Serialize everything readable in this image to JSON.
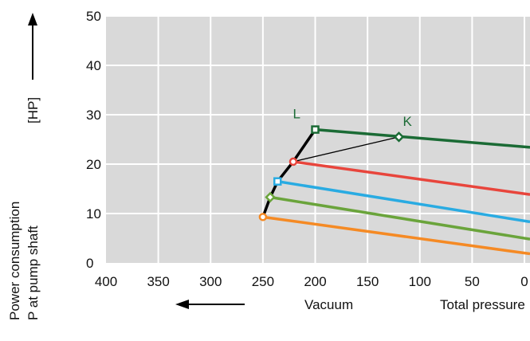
{
  "chart_data": {
    "type": "line",
    "ylabel_lines": [
      "Power consumption",
      "P at pump shaft"
    ],
    "yunit": "[HP]",
    "xlabel_left": "Vacuum",
    "xlabel_right": "Total pressure",
    "xlim": [
      400,
      0
    ],
    "ylim": [
      0,
      50
    ],
    "xticks": [
      "400",
      "350",
      "300",
      "250",
      "200",
      "150",
      "100",
      "50",
      "0"
    ],
    "yticks": [
      "0",
      "10",
      "20",
      "30",
      "40",
      "50"
    ],
    "grid": true,
    "series": [
      {
        "color": "#1b6b35",
        "marker": "square",
        "points": [
          [
            200,
            27
          ],
          [
            0,
            23.5
          ]
        ]
      },
      {
        "color": "#e8453c",
        "marker": "circle",
        "points": [
          [
            221,
            20.5
          ],
          [
            0,
            14
          ]
        ]
      },
      {
        "color": "#29abe2",
        "marker": "square",
        "points": [
          [
            236,
            16.5
          ],
          [
            0,
            8.5
          ]
        ]
      },
      {
        "color": "#6aa43b",
        "marker": "diamond",
        "points": [
          [
            243,
            13.3
          ],
          [
            0,
            5
          ]
        ]
      },
      {
        "color": "#f58a24",
        "marker": "circle",
        "points": [
          [
            250,
            9.3
          ],
          [
            0,
            2
          ]
        ]
      }
    ],
    "envelope": {
      "color": "#000000",
      "points": [
        [
          250,
          9.3
        ],
        [
          243,
          13.3
        ],
        [
          236,
          16.5
        ],
        [
          221,
          20.5
        ],
        [
          200,
          27
        ]
      ]
    },
    "connector": {
      "color": "#000000",
      "points": [
        [
          221,
          20.5
        ],
        [
          120,
          25.5
        ]
      ]
    },
    "annotations": [
      {
        "label": "L",
        "x": 200,
        "y": 27,
        "color": "#1b6b35"
      },
      {
        "label": "K",
        "x": 120,
        "y": 25.5,
        "color": "#1b6b35",
        "marker": "diamond"
      }
    ]
  }
}
